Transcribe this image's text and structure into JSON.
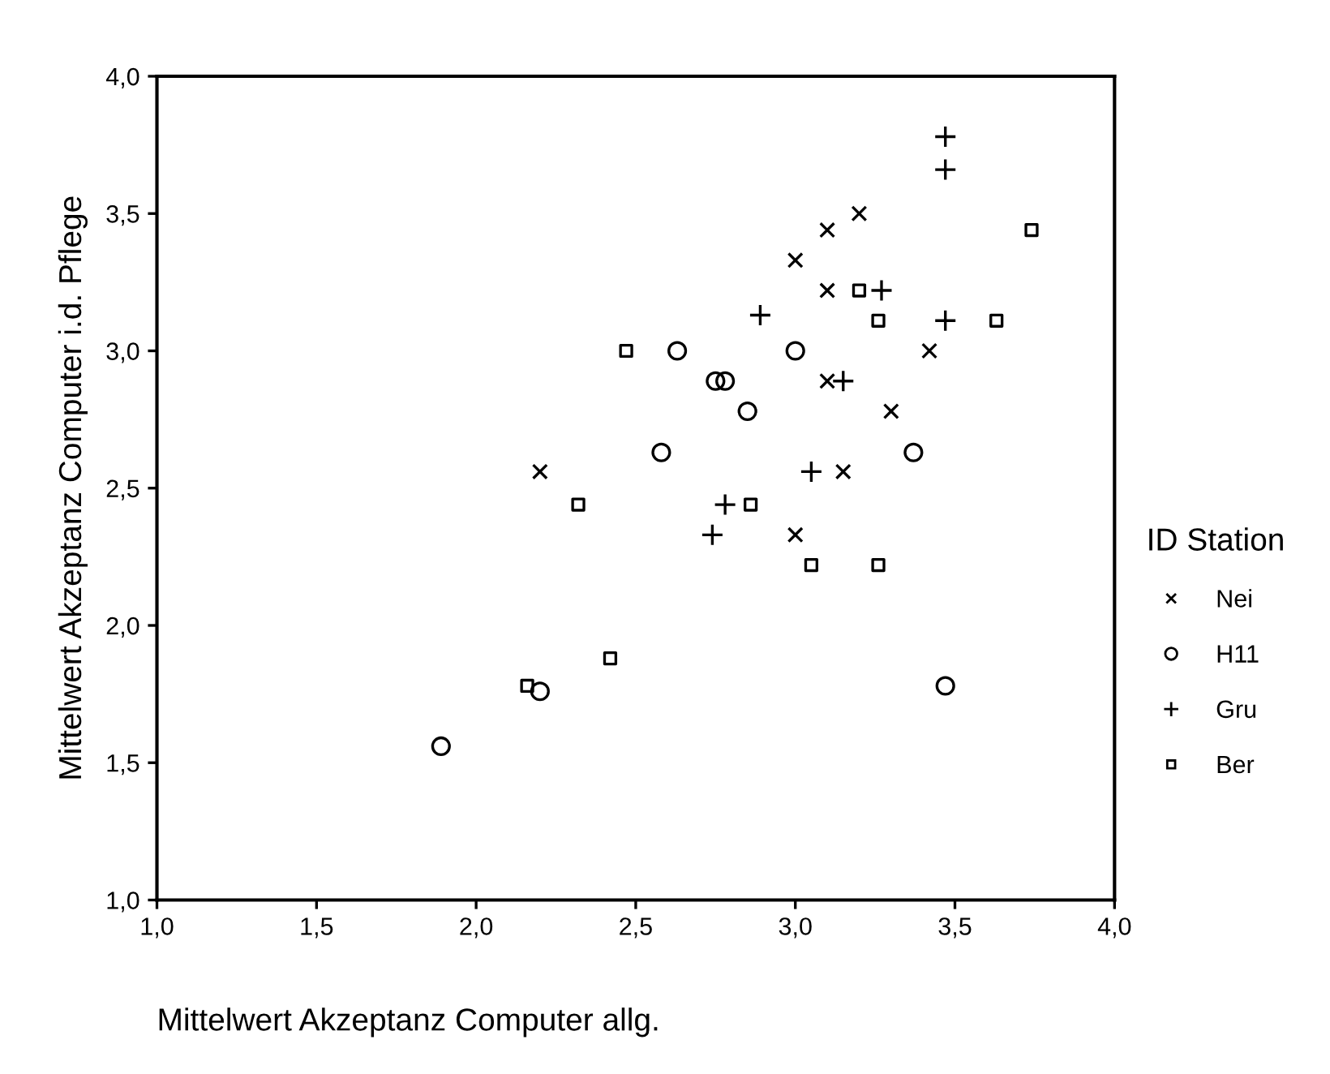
{
  "chart_data": {
    "type": "scatter",
    "xlabel": "Mittelwert Akzeptanz Computer allg.",
    "ylabel": "Mittelwert Akzeptanz Computer i.d. Pflege",
    "legend_title": "ID Station",
    "legend": "right",
    "grid": false,
    "xlim": [
      1.0,
      4.0
    ],
    "ylim": [
      1.0,
      4.0
    ],
    "xticks": [
      {
        "value": 1.0,
        "label": "1,0"
      },
      {
        "value": 1.5,
        "label": "1,5"
      },
      {
        "value": 2.0,
        "label": "2,0"
      },
      {
        "value": 2.5,
        "label": "2,5"
      },
      {
        "value": 3.0,
        "label": "3,0"
      },
      {
        "value": 3.5,
        "label": "3,5"
      },
      {
        "value": 4.0,
        "label": "4,0"
      }
    ],
    "yticks": [
      {
        "value": 1.0,
        "label": "1,0"
      },
      {
        "value": 1.5,
        "label": "1,5"
      },
      {
        "value": 2.0,
        "label": "2,0"
      },
      {
        "value": 2.5,
        "label": "2,5"
      },
      {
        "value": 3.0,
        "label": "3,0"
      },
      {
        "value": 3.5,
        "label": "3,5"
      },
      {
        "value": 4.0,
        "label": "4,0"
      }
    ],
    "series": [
      {
        "name": "Nei",
        "color": "#000000",
        "marker": "cross",
        "x": [
          2.2,
          3.0,
          3.1,
          3.2,
          3.1,
          3.1,
          3.42,
          3.3,
          3.15,
          3.0
        ],
        "values": [
          2.56,
          3.33,
          3.44,
          3.5,
          3.22,
          2.89,
          3.0,
          2.78,
          2.56,
          2.33
        ]
      },
      {
        "name": "H11",
        "color": "#000000",
        "marker": "circle",
        "x": [
          2.63,
          3.0,
          2.75,
          2.78,
          2.85,
          2.58,
          3.37,
          2.2,
          1.89,
          3.47
        ],
        "values": [
          3.0,
          3.0,
          2.89,
          2.89,
          2.78,
          2.63,
          2.63,
          1.76,
          1.56,
          1.78
        ]
      },
      {
        "name": "Gru",
        "color": "#000000",
        "marker": "plus",
        "x": [
          3.47,
          3.47,
          3.27,
          2.89,
          3.47,
          3.15,
          3.05,
          2.78,
          2.74
        ],
        "values": [
          3.78,
          3.66,
          3.22,
          3.13,
          3.11,
          2.89,
          2.56,
          2.44,
          2.33
        ]
      },
      {
        "name": "Ber",
        "color": "#000000",
        "marker": "square",
        "x": [
          3.74,
          3.2,
          3.26,
          3.63,
          2.47,
          2.32,
          2.86,
          3.05,
          3.26,
          2.42,
          2.16
        ],
        "values": [
          3.44,
          3.22,
          3.11,
          3.11,
          3.0,
          2.44,
          2.44,
          2.22,
          2.22,
          1.88,
          1.78
        ]
      }
    ]
  }
}
